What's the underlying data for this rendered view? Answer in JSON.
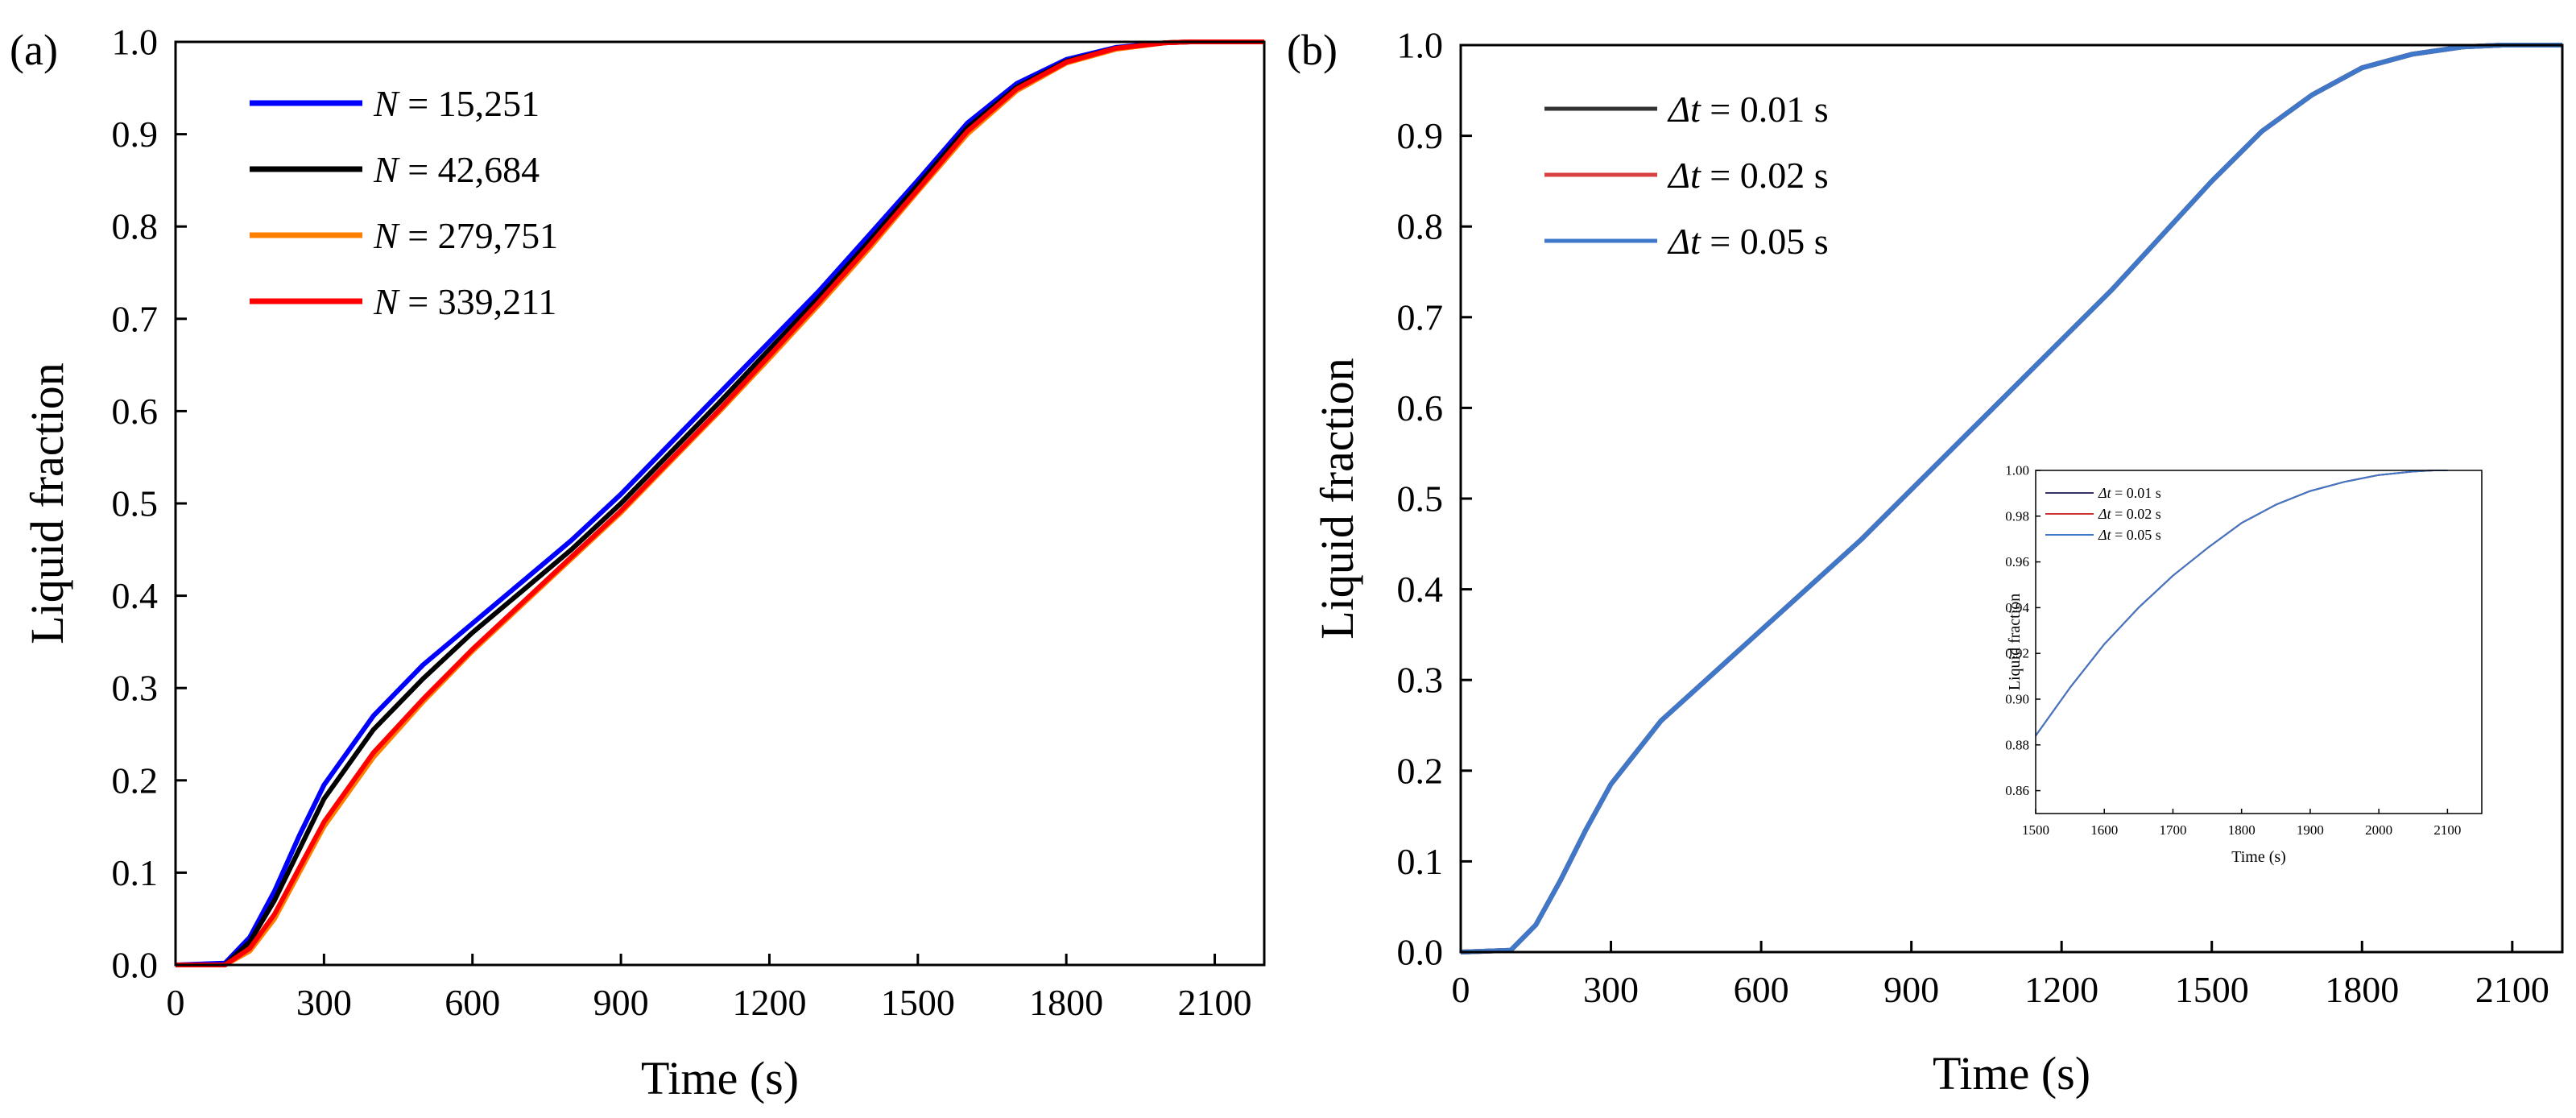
{
  "chart_data": [
    {
      "panel_label": "(a)",
      "type": "line",
      "xlabel": "Time (s)",
      "ylabel": "Liquid fraction",
      "xlim": [
        0,
        2200
      ],
      "ylim": [
        0,
        1.0
      ],
      "xticks": [
        0,
        300,
        600,
        900,
        1200,
        1500,
        1800,
        2100
      ],
      "yticks": [
        0.0,
        0.1,
        0.2,
        0.3,
        0.4,
        0.5,
        0.6,
        0.7,
        0.8,
        0.9,
        1.0
      ],
      "x_tick_labels": [
        "0",
        "300",
        "600",
        "900",
        "1200",
        "1500",
        "1800",
        "2100"
      ],
      "y_tick_labels": [
        "0.0",
        "0.1",
        "0.2",
        "0.3",
        "0.4",
        "0.5",
        "0.6",
        "0.7",
        "0.8",
        "0.9",
        "1.0"
      ],
      "legend_position": "top-left",
      "series": [
        {
          "name_var": "N",
          "name_rest": " = 15,251",
          "color": "#0000ff",
          "x": [
            0,
            100,
            150,
            200,
            250,
            300,
            400,
            500,
            600,
            700,
            800,
            900,
            1000,
            1100,
            1200,
            1300,
            1400,
            1500,
            1600,
            1700,
            1800,
            1900,
            2000,
            2050,
            2200
          ],
          "y": [
            0,
            0.002,
            0.03,
            0.08,
            0.14,
            0.195,
            0.27,
            0.325,
            0.37,
            0.415,
            0.46,
            0.51,
            0.565,
            0.62,
            0.675,
            0.73,
            0.79,
            0.85,
            0.912,
            0.955,
            0.981,
            0.994,
            0.999,
            1.0,
            1.0
          ]
        },
        {
          "name_var": "N",
          "name_rest": " = 42,684",
          "color": "#000000",
          "x": [
            0,
            100,
            150,
            200,
            250,
            300,
            400,
            500,
            600,
            700,
            800,
            900,
            1000,
            1100,
            1200,
            1300,
            1400,
            1500,
            1600,
            1700,
            1800,
            1900,
            2000,
            2050,
            2200
          ],
          "y": [
            0,
            0.0,
            0.025,
            0.07,
            0.125,
            0.18,
            0.255,
            0.31,
            0.36,
            0.405,
            0.45,
            0.5,
            0.555,
            0.61,
            0.667,
            0.723,
            0.783,
            0.845,
            0.907,
            0.951,
            0.979,
            0.993,
            0.999,
            1.0,
            1.0
          ]
        },
        {
          "name_var": "N",
          "name_rest": " = 279,751",
          "color": "#ff8000",
          "x": [
            0,
            100,
            150,
            200,
            250,
            300,
            400,
            500,
            600,
            700,
            800,
            900,
            1000,
            1100,
            1200,
            1300,
            1400,
            1500,
            1600,
            1700,
            1800,
            1900,
            2000,
            2050,
            2200
          ],
          "y": [
            0,
            0.0,
            0.015,
            0.05,
            0.1,
            0.15,
            0.225,
            0.285,
            0.34,
            0.39,
            0.44,
            0.49,
            0.545,
            0.6,
            0.657,
            0.715,
            0.775,
            0.838,
            0.9,
            0.947,
            0.977,
            0.992,
            0.999,
            1.0,
            1.0
          ]
        },
        {
          "name_var": "N",
          "name_rest": " = 339,211",
          "color": "#ff0000",
          "x": [
            0,
            100,
            150,
            200,
            250,
            300,
            400,
            500,
            600,
            700,
            800,
            900,
            1000,
            1100,
            1200,
            1300,
            1400,
            1500,
            1600,
            1700,
            1800,
            1900,
            2000,
            2050,
            2200
          ],
          "y": [
            0,
            0.0,
            0.018,
            0.055,
            0.105,
            0.155,
            0.23,
            0.288,
            0.342,
            0.392,
            0.442,
            0.492,
            0.547,
            0.602,
            0.66,
            0.718,
            0.778,
            0.84,
            0.903,
            0.949,
            0.978,
            0.993,
            0.999,
            1.0,
            1.0
          ]
        }
      ]
    },
    {
      "panel_label": "(b)",
      "type": "line",
      "xlabel": "Time (s)",
      "ylabel": "Liquid fraction",
      "xlim": [
        0,
        2200
      ],
      "ylim": [
        0,
        1.0
      ],
      "xticks": [
        0,
        300,
        600,
        900,
        1200,
        1500,
        1800,
        2100
      ],
      "yticks": [
        0.0,
        0.1,
        0.2,
        0.3,
        0.4,
        0.5,
        0.6,
        0.7,
        0.8,
        0.9,
        1.0
      ],
      "x_tick_labels": [
        "0",
        "300",
        "600",
        "900",
        "1200",
        "1500",
        "1800",
        "2100"
      ],
      "y_tick_labels": [
        "0.0",
        "0.1",
        "0.2",
        "0.3",
        "0.4",
        "0.5",
        "0.6",
        "0.7",
        "0.8",
        "0.9",
        "1.0"
      ],
      "legend_position": "top-left",
      "series": [
        {
          "name_var": "Δt",
          "name_rest": " = 0.01 s",
          "color": "#333333",
          "x": [
            0,
            100,
            150,
            200,
            250,
            300,
            400,
            500,
            600,
            700,
            800,
            900,
            1000,
            1100,
            1200,
            1300,
            1400,
            1500,
            1600,
            1700,
            1800,
            1900,
            2000,
            2080,
            2200
          ],
          "y": [
            0,
            0.002,
            0.03,
            0.08,
            0.135,
            0.185,
            0.255,
            0.305,
            0.355,
            0.405,
            0.455,
            0.51,
            0.565,
            0.62,
            0.675,
            0.73,
            0.79,
            0.85,
            0.905,
            0.945,
            0.975,
            0.99,
            0.998,
            1.0,
            1.0
          ]
        },
        {
          "name_var": "Δt",
          "name_rest": " = 0.02 s",
          "color": "#d94040",
          "x": [
            0,
            100,
            150,
            200,
            250,
            300,
            400,
            500,
            600,
            700,
            800,
            900,
            1000,
            1100,
            1200,
            1300,
            1400,
            1500,
            1600,
            1700,
            1800,
            1900,
            2000,
            2080,
            2200
          ],
          "y": [
            0,
            0.002,
            0.03,
            0.08,
            0.135,
            0.185,
            0.255,
            0.305,
            0.355,
            0.405,
            0.455,
            0.51,
            0.565,
            0.62,
            0.675,
            0.73,
            0.79,
            0.85,
            0.905,
            0.945,
            0.975,
            0.99,
            0.998,
            1.0,
            1.0
          ]
        },
        {
          "name_var": "Δt",
          "name_rest": " = 0.05 s",
          "color": "#3f78c8",
          "x": [
            0,
            100,
            150,
            200,
            250,
            300,
            400,
            500,
            600,
            700,
            800,
            900,
            1000,
            1100,
            1200,
            1300,
            1400,
            1500,
            1600,
            1700,
            1800,
            1900,
            2000,
            2080,
            2200
          ],
          "y": [
            0,
            0.002,
            0.03,
            0.08,
            0.135,
            0.185,
            0.255,
            0.305,
            0.355,
            0.405,
            0.455,
            0.51,
            0.565,
            0.62,
            0.675,
            0.73,
            0.79,
            0.85,
            0.905,
            0.945,
            0.975,
            0.99,
            0.998,
            1.0,
            1.0
          ]
        }
      ]
    },
    {
      "panel_label": "(b) inset",
      "type": "line",
      "xlabel": "Time (s)",
      "ylabel": "Liquid fraction",
      "xlim": [
        1500,
        2150
      ],
      "ylim": [
        0.85,
        1.0
      ],
      "xticks": [
        1500,
        1600,
        1700,
        1800,
        1900,
        2000,
        2100
      ],
      "yticks": [
        0.86,
        0.88,
        0.9,
        0.92,
        0.94,
        0.96,
        0.98,
        1.0
      ],
      "x_tick_labels": [
        "1500",
        "1600",
        "1700",
        "1800",
        "1900",
        "2000",
        "2100"
      ],
      "y_tick_labels": [
        "0.86",
        "0.88",
        "0.90",
        "0.92",
        "0.94",
        "0.96",
        "0.98",
        "1.00"
      ],
      "legend_position": "top-left",
      "series": [
        {
          "name_var": "Δt",
          "name_rest": " = 0.01 s",
          "color": "#333366",
          "x": [
            1500,
            1550,
            1600,
            1650,
            1700,
            1750,
            1800,
            1850,
            1900,
            1950,
            2000,
            2050,
            2080,
            2100
          ],
          "y": [
            0.884,
            0.905,
            0.924,
            0.94,
            0.954,
            0.966,
            0.977,
            0.985,
            0.991,
            0.995,
            0.998,
            0.9995,
            1.0,
            1.0
          ]
        },
        {
          "name_var": "Δt",
          "name_rest": " = 0.02 s",
          "color": "#cc3333",
          "x": [
            1500,
            1550,
            1600,
            1650,
            1700,
            1750,
            1800,
            1850,
            1900,
            1950,
            2000,
            2050,
            2080,
            2100
          ],
          "y": [
            0.884,
            0.905,
            0.924,
            0.94,
            0.954,
            0.966,
            0.977,
            0.985,
            0.991,
            0.995,
            0.998,
            0.9995,
            1.0,
            1.0
          ]
        },
        {
          "name_var": "Δt",
          "name_rest": " = 0.05 s",
          "color": "#3f78c8",
          "x": [
            1500,
            1550,
            1600,
            1650,
            1700,
            1750,
            1800,
            1850,
            1900,
            1950,
            2000,
            2050,
            2080,
            2100
          ],
          "y": [
            0.884,
            0.905,
            0.924,
            0.94,
            0.954,
            0.966,
            0.977,
            0.985,
            0.991,
            0.995,
            0.998,
            0.9995,
            1.0,
            1.0
          ]
        }
      ]
    }
  ]
}
